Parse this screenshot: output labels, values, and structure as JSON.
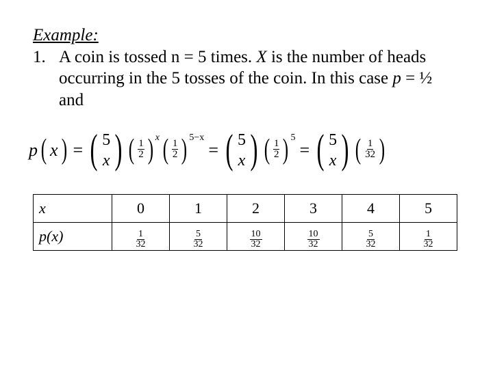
{
  "heading": "Example:",
  "problem": {
    "number": "1.",
    "text_parts": {
      "p1": "A coin is tossed n = 5 times. ",
      "xvar": "X",
      "p2": " is the number of heads occurring in the 5 tosses of the coin. In this case ",
      "pvar": "p",
      "p3": " = ½ and"
    }
  },
  "equation": {
    "lhs": {
      "func": "p",
      "arg": "x"
    },
    "binom_top": "5",
    "binom_bottom": "x",
    "half_num": "1",
    "half_den": "2",
    "exp1": "x",
    "exp2": "5−x",
    "exp3": "5",
    "final_frac_num": "1",
    "final_frac_den": "32",
    "eq": "="
  },
  "table": {
    "row_headers": {
      "x": "x",
      "px": "p(x)"
    },
    "columns": [
      "0",
      "1",
      "2",
      "3",
      "4",
      "5"
    ],
    "probs": [
      {
        "num": "1",
        "den": "32"
      },
      {
        "num": "5",
        "den": "32"
      },
      {
        "num": "10",
        "den": "32"
      },
      {
        "num": "10",
        "den": "32"
      },
      {
        "num": "5",
        "den": "32"
      },
      {
        "num": "1",
        "den": "32"
      }
    ]
  },
  "style": {
    "text_color": "#000000",
    "background_color": "#ffffff",
    "base_fontsize_pt": 19,
    "table_border_color": "#000000"
  }
}
